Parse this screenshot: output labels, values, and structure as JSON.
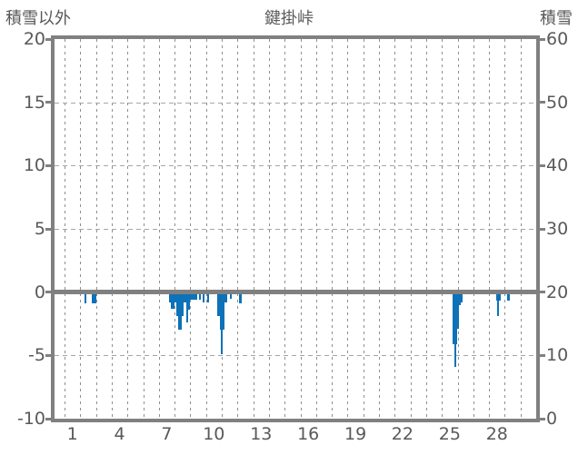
{
  "chart_data": {
    "type": "bar",
    "title": "鍵掛峠",
    "grid": "dashed",
    "legend": "none",
    "x_axis": {
      "unit": "day of month",
      "range_days": [
        0,
        30
      ],
      "tick_labels": [
        1,
        4,
        7,
        10,
        13,
        16,
        19,
        22,
        25,
        28
      ],
      "gridline_interval_days": 1
    },
    "y_axis_left": {
      "label": "積雪以外",
      "range": [
        -10,
        20
      ],
      "ticks": [
        20,
        15,
        10,
        5,
        0,
        -5,
        -10
      ],
      "dashed_gridline_values": [
        15,
        10,
        5,
        -5
      ],
      "zero_line_value": 0
    },
    "y_axis_right": {
      "label": "積雪",
      "range": [
        0,
        60
      ],
      "ticks": [
        60,
        50,
        40,
        30,
        20,
        10,
        0
      ]
    },
    "series": [
      {
        "name": "積雪以外",
        "color": "#0d72b8",
        "bar_format": "[start_day, end_day, value]",
        "bars": [
          [
            1.28,
            1.42,
            -0.9
          ],
          [
            1.71,
            2.01,
            -0.9
          ],
          [
            6.64,
            6.77,
            -0.8
          ],
          [
            6.77,
            6.97,
            -1.3
          ],
          [
            6.97,
            7.12,
            -0.8
          ],
          [
            7.12,
            7.25,
            -1.9
          ],
          [
            7.25,
            7.45,
            -3.0
          ],
          [
            7.45,
            7.58,
            -1.9
          ],
          [
            7.58,
            7.73,
            -0.8
          ],
          [
            7.73,
            7.85,
            -2.4
          ],
          [
            7.85,
            7.97,
            -1.4
          ],
          [
            7.97,
            8.14,
            -0.6
          ],
          [
            8.14,
            8.43,
            -0.6
          ],
          [
            8.56,
            8.7,
            -0.6
          ],
          [
            8.79,
            8.93,
            -0.8
          ],
          [
            9.08,
            9.22,
            -0.8
          ],
          [
            9.7,
            9.86,
            -1.9
          ],
          [
            9.86,
            9.95,
            -3.0
          ],
          [
            9.95,
            10.05,
            -4.9
          ],
          [
            10.05,
            10.18,
            -3.0
          ],
          [
            10.18,
            10.34,
            -0.8
          ],
          [
            10.53,
            10.66,
            -0.5
          ],
          [
            11.1,
            11.26,
            -0.9
          ],
          [
            24.67,
            24.79,
            -4.1
          ],
          [
            24.79,
            24.92,
            -5.9
          ],
          [
            24.92,
            24.98,
            -4.1
          ],
          [
            24.98,
            25.08,
            -2.9
          ],
          [
            25.08,
            25.21,
            -1.0
          ],
          [
            25.21,
            25.31,
            -0.8
          ],
          [
            27.44,
            27.5,
            -0.7
          ],
          [
            27.5,
            27.64,
            -1.9
          ],
          [
            27.64,
            27.73,
            -0.7
          ],
          [
            28.16,
            28.31,
            -0.7
          ]
        ]
      }
    ],
    "colors": {
      "bar": "#0d72b8",
      "axis_border": "#808080",
      "zero_line": "#808080",
      "vertical_grid": "#8f8f8f",
      "horizontal_grid": "#a6a6a6",
      "text": "#595959"
    }
  }
}
